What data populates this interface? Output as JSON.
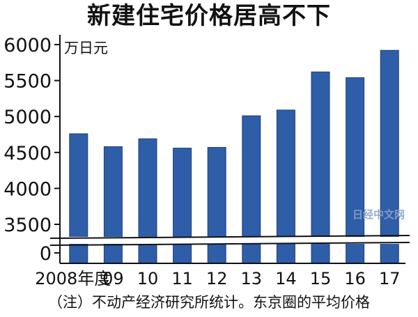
{
  "title": "新建住宅价格居高不下",
  "footnote": "（注）不动产经济研究所统计。东京圈的平均价格",
  "watermark": "日经中文网",
  "colors": {
    "bar": "#2f5ea8",
    "bar_edge": "#1c3f7a",
    "axis": "#111111"
  },
  "chart_data": {
    "type": "bar",
    "title": "新建住宅价格居高不下",
    "unit_label": "万日元",
    "categories": [
      "2008年度",
      "09",
      "10",
      "11",
      "12",
      "13",
      "14",
      "15",
      "16",
      "17"
    ],
    "values": [
      4760,
      4580,
      4690,
      4560,
      4570,
      5010,
      5090,
      5620,
      5540,
      5920
    ],
    "yticks": [
      6000,
      5500,
      5000,
      4500,
      4000,
      3500,
      0
    ],
    "ylim": [
      3300,
      6000
    ],
    "axis_break": true,
    "grid": false
  }
}
